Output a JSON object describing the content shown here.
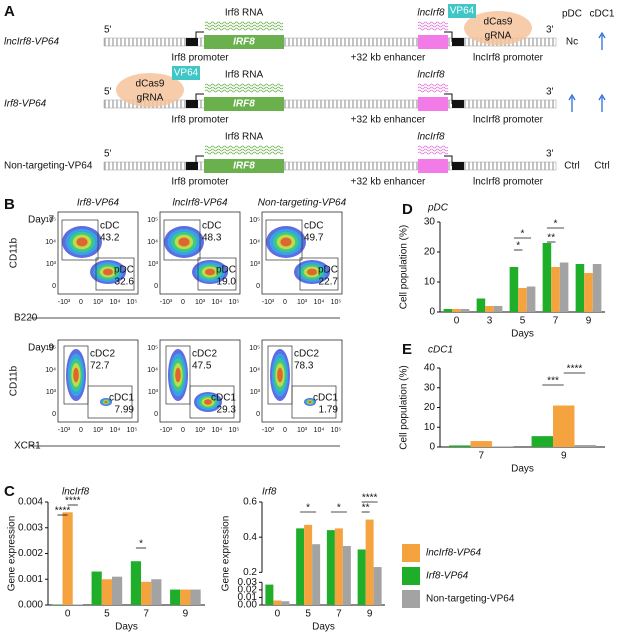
{
  "panel_a": {
    "label": "A",
    "columns": [
      "pDC",
      "cDC1"
    ],
    "rows": [
      {
        "name": "lncIrf8-VP64",
        "five": "5'",
        "three": "3'",
        "rna": "Irf8 RNA",
        "gene": "IRF8",
        "lnc": "lncIrf8",
        "irf8_promoter": "Irf8 promoter",
        "enhancer": "+32 kb enhancer",
        "lnc_promoter": "lncIrf8 promoter",
        "dcas9": "dCas9",
        "grna": "gRNA",
        "vp64": "VP64",
        "pdc": "Nc"
      },
      {
        "name": "Irf8-VP64",
        "five": "5'",
        "three": "3'",
        "rna": "Irf8 RNA",
        "gene": "IRF8",
        "lnc": "lncIrf8",
        "irf8_promoter": "Irf8 promoter",
        "enhancer": "+32 kb enhancer",
        "lnc_promoter": "lncIrf8 promoter",
        "dcas9": "dCas9",
        "grna": "gRNA",
        "vp64": "VP64"
      },
      {
        "name": "Non-targeting-VP64",
        "five": "5'",
        "three": "3'",
        "rna": "Irf8 RNA",
        "gene": "IRF8",
        "lnc": "lncIrf8",
        "irf8_promoter": "Irf8 promoter",
        "enhancer": "+32 kb enhancer",
        "lnc_promoter": "lncIrf8 promoter",
        "pdc": "Ctrl",
        "cdc1": "Ctrl"
      }
    ]
  },
  "panel_b": {
    "label": "B",
    "columns": [
      "Irf8-VP64",
      "lncIrf8-VP64",
      "Non-targeting-VP64"
    ],
    "y_ticks": [
      "0",
      "10³",
      "10⁴",
      "10⁵"
    ],
    "x_ticks": [
      "-10³",
      "0",
      "10³",
      "10⁴",
      "10⁵"
    ],
    "rows": [
      {
        "day": "Day 7",
        "y_label": "CD11b",
        "x_label": "B220",
        "gates": [
          [
            {
              "name": "cDC",
              "value": "43.2"
            },
            {
              "name": "pDC",
              "value": "32.6"
            }
          ],
          [
            {
              "name": "cDC",
              "value": "48.3"
            },
            {
              "name": "pDC",
              "value": "19.0"
            }
          ],
          [
            {
              "name": "cDC",
              "value": "49.7"
            },
            {
              "name": "pDC",
              "value": "22.7"
            }
          ]
        ]
      },
      {
        "day": "Day 9",
        "y_label": "CD11b",
        "x_label": "XCR1",
        "gates": [
          [
            {
              "name": "cDC2",
              "value": "72.7"
            },
            {
              "name": "cDC1",
              "value": "7.99"
            }
          ],
          [
            {
              "name": "cDC2",
              "value": "47.5"
            },
            {
              "name": "cDC1",
              "value": "29.3"
            }
          ],
          [
            {
              "name": "cDC2",
              "value": "78.3"
            },
            {
              "name": "cDC1",
              "value": "1.79"
            }
          ]
        ]
      }
    ]
  },
  "panel_labels": [
    "C",
    "D",
    "E"
  ],
  "chart_data": [
    {
      "type": "bar",
      "title": "lncIrf8",
      "xlabel": "Days",
      "ylabel": "Gene expression",
      "categories": [
        "0",
        "5",
        "7",
        "9"
      ],
      "series": [
        {
          "name": "Irf8-VP64",
          "color": "#1fae2a",
          "values": [
            2e-05,
            0.0013,
            0.0017,
            0.0006
          ]
        },
        {
          "name": "lncIrf8-VP64",
          "color": "#f5a33f",
          "values": [
            0.0036,
            0.001,
            0.0009,
            0.0006
          ]
        },
        {
          "name": "Non-targeting-VP64",
          "color": "#a3a3a3",
          "values": [
            2e-05,
            0.0011,
            0.001,
            0.0006
          ]
        }
      ],
      "ylim": [
        0,
        0.004
      ],
      "yticks": [
        {
          "value": 0,
          "label": "0.000"
        },
        {
          "value": 0.001,
          "label": "0.001"
        },
        {
          "value": 0.002,
          "label": "0.002"
        },
        {
          "value": 0.003,
          "label": "0.003"
        },
        {
          "value": 0.004,
          "label": "0.004"
        }
      ],
      "annotations": [
        "****",
        "****",
        "*"
      ]
    },
    {
      "type": "bar",
      "title": "Irf8",
      "xlabel": "Days",
      "ylabel": "Gene expression",
      "categories": [
        "0",
        "5",
        "7",
        "9"
      ],
      "series": [
        {
          "color": "#1fae2a",
          "values": [
            0.027,
            0.45,
            0.44,
            0.33
          ]
        },
        {
          "color": "#f5a33f",
          "values": [
            0.006,
            0.47,
            0.45,
            0.5
          ]
        },
        {
          "color": "#a3a3a3",
          "values": [
            0.005,
            0.36,
            0.35,
            0.23
          ]
        }
      ],
      "ylim": [
        0,
        0.6
      ],
      "ybreak": [
        0.03,
        0.2
      ],
      "yticks": [
        {
          "value": 0,
          "label": "0.00"
        },
        {
          "value": 0.01,
          "label": "0.01"
        },
        {
          "value": 0.02,
          "label": "0.02"
        },
        {
          "value": 0.03,
          "label": "0.03"
        },
        0.2,
        0.4,
        0.6
      ],
      "annotations": [
        "*",
        "*",
        "**",
        "****"
      ]
    },
    {
      "type": "bar",
      "title": "pDC",
      "xlabel": "Days",
      "ylabel": "Cell population (%)",
      "categories": [
        "0",
        "3",
        "5",
        "7",
        "9"
      ],
      "series": [
        {
          "color": "#1fae2a",
          "values": [
            1,
            4.5,
            15,
            23,
            16
          ]
        },
        {
          "color": "#f5a33f",
          "values": [
            1,
            2,
            8,
            15,
            13
          ]
        },
        {
          "color": "#a3a3a3",
          "values": [
            1,
            2,
            8.5,
            16.5,
            16
          ]
        }
      ],
      "ylim": [
        0,
        30
      ],
      "yticks": [
        0,
        10,
        20,
        30
      ],
      "annotations": [
        "*",
        "*",
        "*",
        "**"
      ]
    },
    {
      "type": "bar",
      "title": "cDC1",
      "xlabel": "Days",
      "ylabel": "Cell population (%)",
      "categories": [
        "7",
        "9"
      ],
      "series": [
        {
          "color": "#1fae2a",
          "values": [
            0.8,
            5.5
          ]
        },
        {
          "color": "#f5a33f",
          "values": [
            3,
            21
          ]
        },
        {
          "color": "#a3a3a3",
          "values": [
            0.3,
            1
          ]
        }
      ],
      "ylim": [
        0,
        40
      ],
      "yticks": [
        0,
        10,
        20,
        30,
        40
      ],
      "annotations": [
        "***",
        "****"
      ]
    }
  ]
}
